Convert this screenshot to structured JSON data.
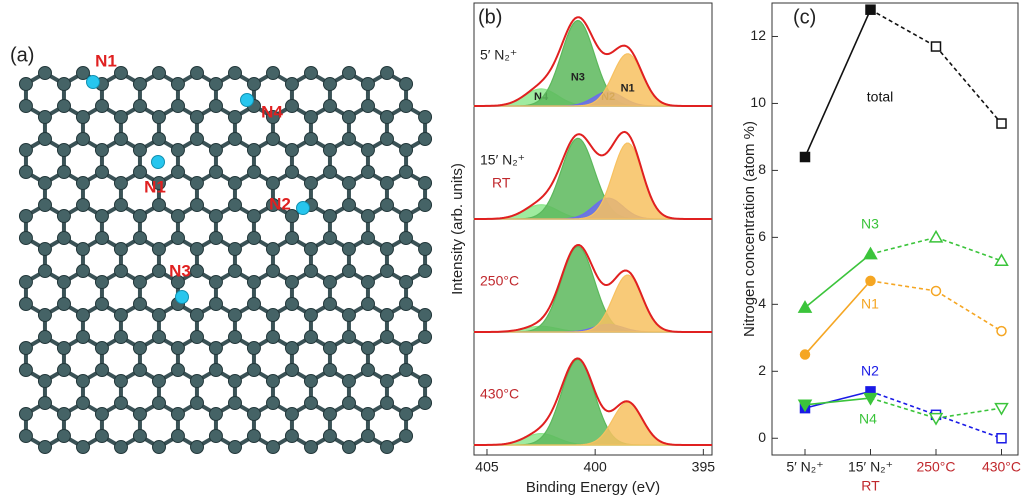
{
  "figure": {
    "panel_labels": [
      "(a)",
      "(b)",
      "(c)"
    ]
  },
  "diagram": {
    "atom_labels": [
      "N1",
      "N4",
      "N1",
      "N2",
      "N3"
    ]
  },
  "chart_data": [
    {
      "type": "spectra",
      "xlabel": "Binding Energy (eV)",
      "ylabel": "Intensity (arb. units)",
      "xlim": [
        405.6,
        394.6
      ],
      "xticks": [
        405,
        400,
        395
      ],
      "ylim": [
        0,
        1
      ],
      "fit_color": "#e02020",
      "spectra": [
        {
          "label": "5′ N₂⁺",
          "label_color": "#222222",
          "components": [
            {
              "name": "N4",
              "color": "#8ee88e",
              "center": 402.5,
              "height": 0.18,
              "fwhm": 1.8
            },
            {
              "name": "N3",
              "color": "#5cb85c",
              "center": 400.8,
              "height": 0.9,
              "fwhm": 1.8
            },
            {
              "name": "N2",
              "color": "#6b6bf0",
              "center": 399.4,
              "height": 0.15,
              "fwhm": 1.6
            },
            {
              "name": "N1",
              "color": "#f7c160",
              "center": 398.5,
              "height": 0.55,
              "fwhm": 1.6
            }
          ]
        },
        {
          "label": "15′ N₂⁺",
          "sublabel": "RT",
          "label_color": "#222222",
          "sublabel_color": "#c0282d",
          "components": [
            {
              "color": "#8ee88e",
              "center": 402.5,
              "height": 0.15,
              "fwhm": 1.8
            },
            {
              "color": "#5cb85c",
              "center": 400.8,
              "height": 0.85,
              "fwhm": 1.8
            },
            {
              "color": "#6b6bf0",
              "center": 399.4,
              "height": 0.22,
              "fwhm": 1.6
            },
            {
              "color": "#f7c160",
              "center": 398.5,
              "height": 0.8,
              "fwhm": 1.6
            }
          ]
        },
        {
          "label": "250°C",
          "label_color": "#c0282d",
          "components": [
            {
              "color": "#8ee88e",
              "center": 402.5,
              "height": 0.06,
              "fwhm": 1.8
            },
            {
              "color": "#5cb85c",
              "center": 400.8,
              "height": 0.9,
              "fwhm": 1.8
            },
            {
              "color": "#6b6bf0",
              "center": 399.4,
              "height": 0.08,
              "fwhm": 1.6
            },
            {
              "color": "#f7c160",
              "center": 398.5,
              "height": 0.6,
              "fwhm": 1.6
            }
          ]
        },
        {
          "label": "430°C",
          "label_color": "#c0282d",
          "components": [
            {
              "color": "#8ee88e",
              "center": 402.5,
              "height": 0.12,
              "fwhm": 1.8
            },
            {
              "color": "#5cb85c",
              "center": 400.8,
              "height": 0.9,
              "fwhm": 1.8
            },
            {
              "color": "#f7c160",
              "center": 398.5,
              "height": 0.45,
              "fwhm": 1.6
            }
          ]
        }
      ]
    },
    {
      "type": "line",
      "ylabel": "Nitrogen concentration (atom %)",
      "categories": [
        "5′ N₂⁺",
        "15′ N₂⁺",
        "250°C",
        "430°C"
      ],
      "category_colors": [
        "#222222",
        "#222222",
        "#c0282d",
        "#c0282d"
      ],
      "x_annotation": "RT",
      "x_annotation_color": "#c0282d",
      "ylim": [
        -0.5,
        13
      ],
      "yticks": [
        0,
        2,
        4,
        6,
        8,
        10,
        12
      ],
      "series": [
        {
          "name": "total",
          "color": "#111111",
          "label_color": "#111111",
          "marker": "square",
          "values": [
            8.4,
            12.8,
            11.7,
            9.4
          ]
        },
        {
          "name": "N3",
          "color": "#3bc43b",
          "label_color": "#3bc43b",
          "marker": "triangle-up",
          "values": [
            3.9,
            5.5,
            6.0,
            5.3
          ]
        },
        {
          "name": "N1",
          "color": "#f5a623",
          "label_color": "#f5a623",
          "marker": "circle",
          "values": [
            2.5,
            4.7,
            4.4,
            3.2
          ]
        },
        {
          "name": "N2",
          "color": "#1a1ae6",
          "label_color": "#1a1ae6",
          "marker": "square",
          "values": [
            0.9,
            1.4,
            0.7,
            0.0
          ]
        },
        {
          "name": "N4",
          "color": "#3bc43b",
          "label_color": "#3bc43b",
          "marker": "triangle-down",
          "values": [
            1.0,
            1.2,
            0.6,
            0.9
          ]
        }
      ]
    }
  ]
}
